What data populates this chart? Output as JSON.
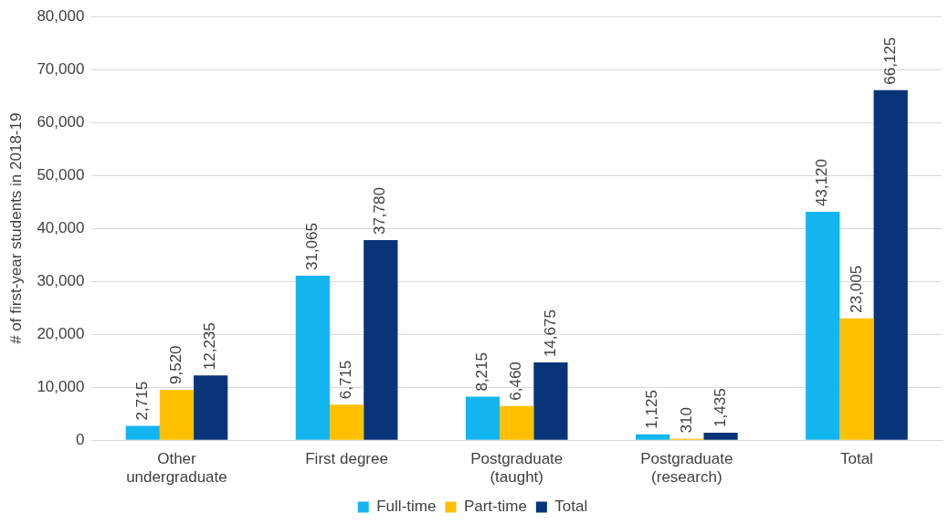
{
  "chart_data": {
    "type": "bar",
    "ylabel": "# of first-year students in 2018-19",
    "categories": [
      "Other undergraduate",
      "First degree",
      "Postgraduate (taught)",
      "Postgraduate (research)",
      "Total"
    ],
    "series": [
      {
        "name": "Full-time",
        "color": "#13b5ef",
        "values": [
          2715,
          31065,
          8215,
          1125,
          43120
        ],
        "value_labels": [
          "2,715",
          "31,065",
          "8,215",
          "1,125",
          "43,120"
        ]
      },
      {
        "name": "Part-time",
        "color": "#ffc000",
        "values": [
          9520,
          6715,
          6460,
          310,
          23005
        ],
        "value_labels": [
          "9,520",
          "6,715",
          "6,460",
          "310",
          "23,005"
        ]
      },
      {
        "name": "Total",
        "color": "#08357a",
        "values": [
          12235,
          37780,
          14675,
          1435,
          66125
        ],
        "value_labels": [
          "12,235",
          "37,780",
          "14,675",
          "1,435",
          "66,125"
        ]
      }
    ],
    "ylim": [
      0,
      80000
    ],
    "yticks": [
      0,
      {
        "value": 10000,
        "label": "10,000"
      },
      {
        "value": 20000,
        "label": "20,000"
      },
      {
        "value": 30000,
        "label": "30,000"
      },
      {
        "value": 40000,
        "label": "40,000"
      },
      {
        "value": 50000,
        "label": "50,000"
      },
      {
        "value": 60000,
        "label": "60,000"
      },
      {
        "value": 70000,
        "label": "70,000"
      },
      {
        "value": 80000,
        "label": "80,000"
      }
    ],
    "grid": "y",
    "legend": "bottom"
  }
}
